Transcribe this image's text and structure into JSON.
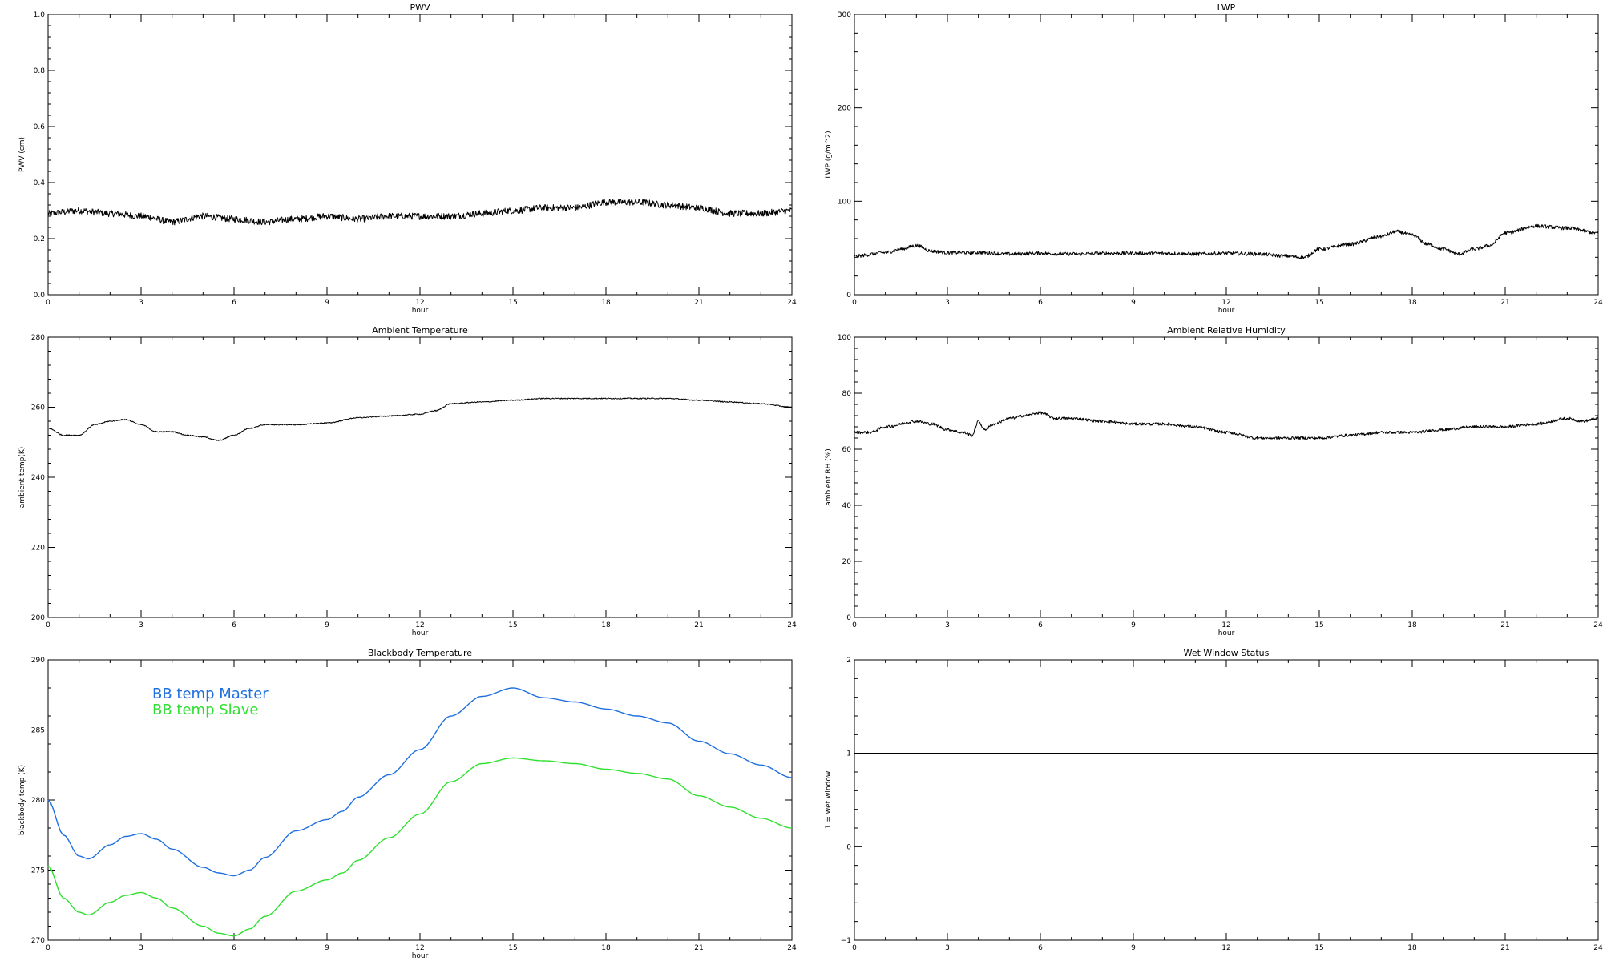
{
  "chart_data": [
    {
      "type": "line",
      "title": "PWV",
      "xlabel": "hour",
      "ylabel": "PWV (cm)",
      "xlim": [
        0,
        24
      ],
      "ylim": [
        0.0,
        1.0
      ],
      "xticks": [
        "0",
        "3",
        "6",
        "9",
        "12",
        "15",
        "18",
        "21",
        "24"
      ],
      "yticks": [
        "0.0",
        "0.2",
        "0.4",
        "0.6",
        "0.8",
        "1.0"
      ],
      "noise": 0.012,
      "series": [
        {
          "color": "#000000",
          "x": [
            0,
            1,
            2,
            3,
            4,
            5,
            6,
            7,
            8,
            9,
            10,
            11,
            12,
            13,
            14,
            15,
            16,
            17,
            18,
            19,
            20,
            21,
            22,
            23,
            24
          ],
          "y": [
            0.29,
            0.3,
            0.29,
            0.28,
            0.26,
            0.28,
            0.27,
            0.26,
            0.27,
            0.28,
            0.27,
            0.28,
            0.28,
            0.28,
            0.29,
            0.3,
            0.31,
            0.31,
            0.33,
            0.33,
            0.32,
            0.31,
            0.29,
            0.29,
            0.3
          ]
        }
      ]
    },
    {
      "type": "line",
      "title": "LWP",
      "xlabel": "hour",
      "ylabel": "LWP (g/m^2)",
      "xlim": [
        0,
        24
      ],
      "ylim": [
        -50,
        350
      ],
      "xticks": [
        "0",
        "3",
        "6",
        "9",
        "12",
        "15",
        "18",
        "21",
        "24"
      ],
      "yticks": [
        "0",
        "100",
        "200",
        "300"
      ],
      "noise": 2.5,
      "series": [
        {
          "color": "#000000",
          "x": [
            0,
            1,
            1.5,
            2,
            2.5,
            3,
            4,
            5,
            6,
            7,
            8,
            9,
            10,
            11,
            12,
            13,
            14,
            14.5,
            15,
            16,
            17,
            17.5,
            18,
            18.5,
            19,
            19.5,
            20,
            20.5,
            21,
            22,
            23,
            24
          ],
          "y": [
            5,
            10,
            15,
            20,
            12,
            10,
            10,
            8,
            9,
            8,
            9,
            9,
            9,
            8,
            9,
            8,
            5,
            3,
            15,
            22,
            33,
            40,
            35,
            22,
            15,
            8,
            15,
            20,
            38,
            48,
            45,
            38
          ]
        }
      ]
    },
    {
      "type": "line",
      "title": "Ambient Temperature",
      "xlabel": "hour",
      "ylabel": "ambient temp(K)",
      "xlim": [
        0,
        24
      ],
      "ylim": [
        200,
        280
      ],
      "xticks": [
        "0",
        "3",
        "6",
        "9",
        "12",
        "15",
        "18",
        "21",
        "24"
      ],
      "yticks": [
        "200",
        "220",
        "240",
        "260",
        "280"
      ],
      "noise": 0.15,
      "series": [
        {
          "color": "#000000",
          "x": [
            0,
            0.5,
            1,
            1.5,
            2,
            2.5,
            3,
            3.5,
            4,
            4.5,
            5,
            5.5,
            6,
            6.5,
            7,
            8,
            9,
            10,
            11,
            12,
            12.5,
            13,
            14,
            15,
            16,
            17,
            18,
            19,
            20,
            21,
            22,
            23,
            24
          ],
          "y": [
            254,
            252,
            252,
            255,
            256,
            256.5,
            255,
            253,
            253,
            252,
            251.5,
            250.5,
            252,
            254,
            255,
            255,
            255.5,
            257,
            257.5,
            258,
            259,
            261,
            261.5,
            262,
            262.5,
            262.5,
            262.5,
            262.5,
            262.5,
            262,
            261.5,
            261,
            260
          ]
        }
      ]
    },
    {
      "type": "line",
      "title": "Ambient Relative Humidity",
      "xlabel": "hour",
      "ylabel": "ambient RH (%)",
      "xlim": [
        0,
        24
      ],
      "ylim": [
        0,
        100
      ],
      "xticks": [
        "0",
        "3",
        "6",
        "9",
        "12",
        "15",
        "18",
        "21",
        "24"
      ],
      "yticks": [
        "0",
        "20",
        "40",
        "60",
        "80",
        "100"
      ],
      "noise": 0.5,
      "series": [
        {
          "color": "#000000",
          "x": [
            0,
            0.5,
            1,
            2,
            2.5,
            3,
            3.5,
            3.8,
            4,
            4.2,
            4.5,
            5,
            5.5,
            6,
            6.5,
            7,
            8,
            9,
            10,
            11,
            12,
            13,
            14,
            15,
            16,
            17,
            18,
            19,
            20,
            21,
            22,
            23,
            23.5,
            24
          ],
          "y": [
            66,
            66,
            68,
            70,
            69,
            67,
            66,
            65,
            70,
            67,
            69,
            71,
            72,
            73,
            71,
            71,
            70,
            69,
            69,
            68,
            66,
            64,
            64,
            64,
            65,
            66,
            66,
            67,
            68,
            68,
            69,
            71,
            70,
            71
          ]
        }
      ]
    },
    {
      "type": "line",
      "title": "Blackbody Temperature",
      "xlabel": "hour",
      "ylabel": "blackbody temp (K)",
      "xlim": [
        0,
        24
      ],
      "ylim": [
        270,
        290
      ],
      "xticks": [
        "0",
        "3",
        "6",
        "9",
        "12",
        "15",
        "18",
        "21",
        "24"
      ],
      "yticks": [
        "270",
        "275",
        "280",
        "285",
        "290"
      ],
      "legend": {
        "position": "top-left"
      },
      "noise": 0,
      "series": [
        {
          "name": "BB temp Master",
          "color": "#1e6fe0",
          "x": [
            0,
            0.5,
            1,
            1.3,
            2,
            2.5,
            3,
            3.5,
            4,
            5,
            5.5,
            6,
            6.5,
            7,
            8,
            9,
            9.5,
            10,
            11,
            12,
            13,
            14,
            15,
            16,
            17,
            18,
            19,
            20,
            21,
            22,
            23,
            24
          ],
          "y": [
            280.0,
            277.5,
            276.0,
            275.8,
            276.8,
            277.4,
            277.6,
            277.2,
            276.5,
            275.2,
            274.8,
            274.6,
            275.0,
            275.9,
            277.8,
            278.6,
            279.2,
            280.2,
            281.8,
            283.6,
            286.0,
            287.4,
            288.0,
            287.3,
            287.0,
            286.5,
            286.0,
            285.5,
            284.2,
            283.3,
            282.5,
            281.6
          ]
        },
        {
          "name": "BB temp Slave",
          "color": "#2ee02e",
          "x": [
            0,
            0.5,
            1,
            1.3,
            2,
            2.5,
            3,
            3.5,
            4,
            5,
            5.5,
            6,
            6.5,
            7,
            8,
            9,
            9.5,
            10,
            11,
            12,
            13,
            14,
            15,
            16,
            17,
            18,
            19,
            20,
            21,
            22,
            23,
            24
          ],
          "y": [
            275.3,
            273.0,
            272.0,
            271.8,
            272.7,
            273.2,
            273.4,
            273.0,
            272.3,
            271.0,
            270.5,
            270.3,
            270.8,
            271.7,
            273.5,
            274.3,
            274.8,
            275.7,
            277.3,
            279.0,
            281.3,
            282.6,
            283.0,
            282.8,
            282.6,
            282.2,
            281.9,
            281.5,
            280.3,
            279.5,
            278.7,
            278.0
          ]
        }
      ]
    },
    {
      "type": "line",
      "title": "Wet Window Status",
      "xlabel": "",
      "ylabel": "1 = wet window",
      "xlim": [
        0,
        24
      ],
      "ylim": [
        -1,
        2
      ],
      "xticks": [
        "0",
        "3",
        "6",
        "9",
        "12",
        "15",
        "18",
        "21",
        "24"
      ],
      "yticks": [
        "−1",
        "0",
        "1",
        "2"
      ],
      "noise": 0,
      "series": [
        {
          "color": "#000000",
          "x": [
            0,
            24
          ],
          "y": [
            1,
            1
          ]
        }
      ]
    }
  ]
}
